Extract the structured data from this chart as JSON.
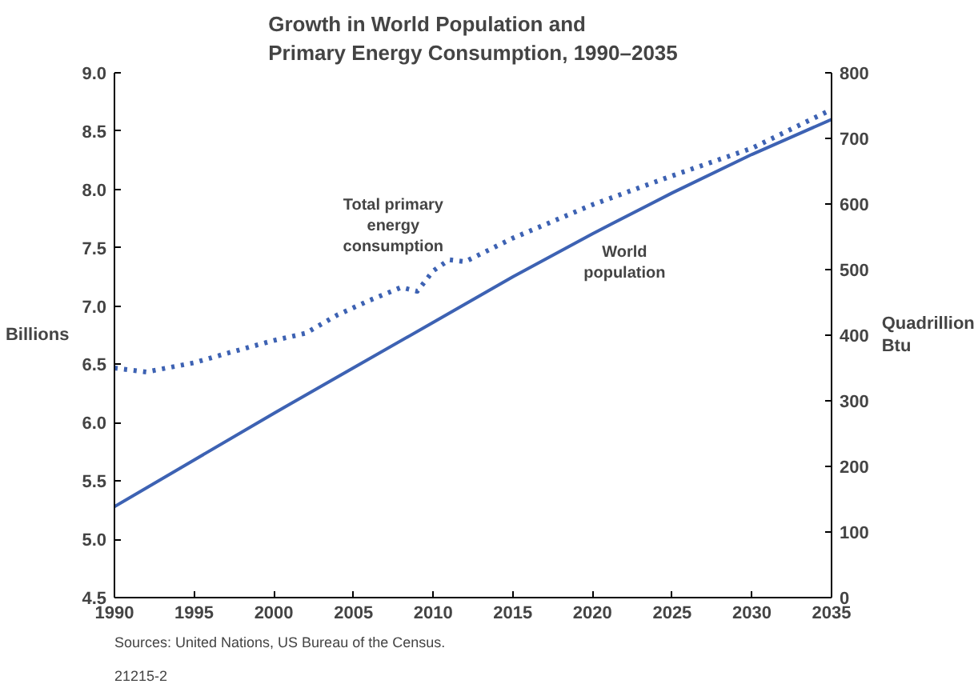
{
  "chart_data": {
    "type": "line",
    "title": "Growth in World Population and\nPrimary Energy Consumption, 1990–2035",
    "ylabel": "Billions",
    "y2label": "Quadrillion\nBtu",
    "x": [
      1990,
      1995,
      2000,
      2005,
      2010,
      2015,
      2020,
      2025,
      2030,
      2035
    ],
    "series": [
      {
        "name": "World population",
        "color": "#3d62b3",
        "line_style": "solid",
        "values": [
          5.28,
          5.68,
          6.08,
          6.47,
          6.86,
          7.25,
          7.62,
          7.97,
          8.3,
          8.6
        ]
      },
      {
        "name": "Total primary energy consumption",
        "color": "#3d62b3",
        "line_style": "dotted",
        "axis": "y2",
        "x": [
          1990,
          1992,
          1995,
          1997,
          2000,
          2002,
          2004,
          2006,
          2008,
          2009,
          2010,
          2011,
          2012,
          2015,
          2020,
          2025,
          2030,
          2035
        ],
        "values": [
          350,
          344,
          358,
          372,
          392,
          403,
          431,
          453,
          473,
          467,
          498,
          515,
          512,
          548,
          599,
          643,
          685,
          744
        ]
      }
    ],
    "xlim": [
      1990,
      2035
    ],
    "xticks": [
      1990,
      1995,
      2000,
      2005,
      2010,
      2015,
      2020,
      2025,
      2030,
      2035
    ],
    "ylim": [
      4.5,
      9.0
    ],
    "yticks": [
      {
        "value": 4.5,
        "label": "4.5"
      },
      {
        "value": 5.0,
        "label": "5.0"
      },
      {
        "value": 5.5,
        "label": "5.5"
      },
      {
        "value": 6.0,
        "label": "6.0"
      },
      {
        "value": 6.5,
        "label": "6.5"
      },
      {
        "value": 7.0,
        "label": "7.0"
      },
      {
        "value": 7.5,
        "label": "7.5"
      },
      {
        "value": 8.0,
        "label": "8.0"
      },
      {
        "value": 8.5,
        "label": "8.5"
      },
      {
        "value": 9.0,
        "label": "9.0"
      }
    ],
    "y2lim": [
      0,
      800
    ],
    "y2ticks": [
      0,
      100,
      200,
      300,
      400,
      500,
      600,
      700,
      800
    ],
    "grid": false,
    "legend": false,
    "marker": "none",
    "annotations": [
      "Sources: United Nations, US Bureau of the Census.",
      "21215-2"
    ]
  }
}
